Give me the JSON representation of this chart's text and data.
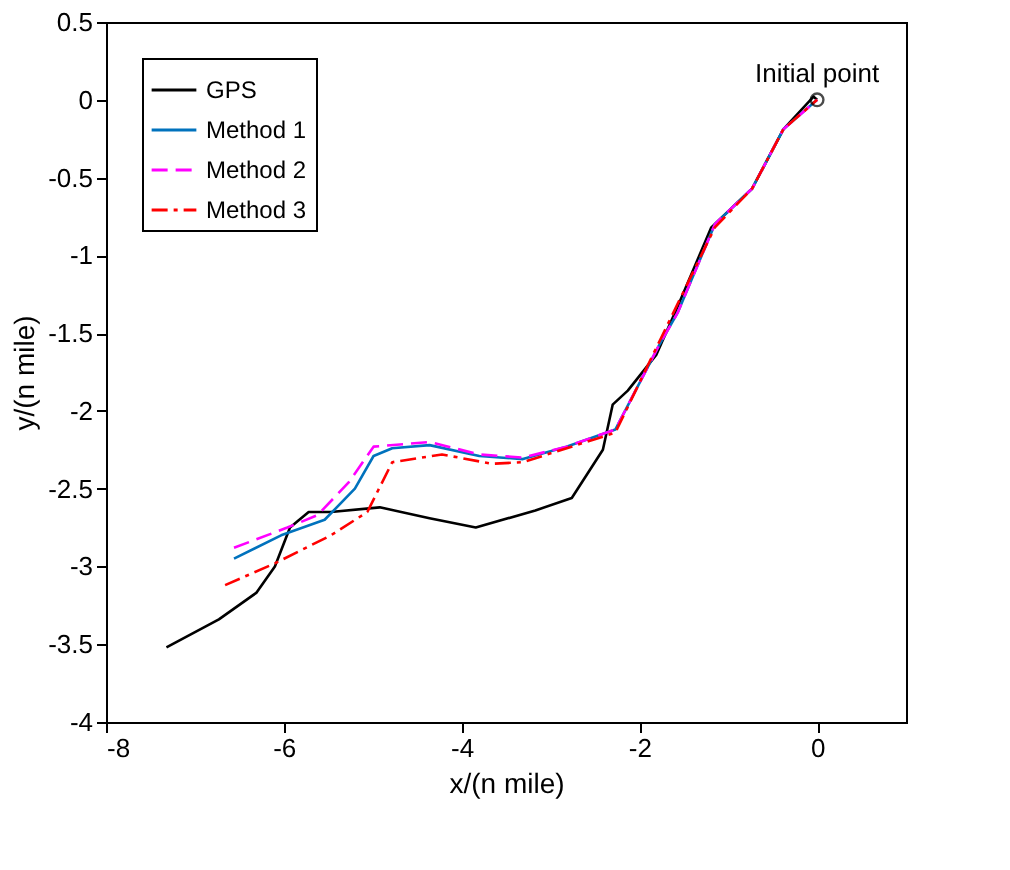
{
  "chart_data": {
    "type": "line",
    "xlabel": "x/(n mile)",
    "ylabel": "y/(n mile)",
    "xlim": [
      -8,
      1
    ],
    "xticks": [
      -8,
      -6,
      -4,
      -2,
      0
    ],
    "ylim": [
      -4,
      0.5
    ],
    "yticks": [
      -4,
      -3.5,
      -3,
      -2.5,
      -2,
      -1.5,
      -1,
      -0.5,
      0,
      0.5
    ],
    "grid": false,
    "legend": "top left",
    "marker": "none",
    "annotations": [
      {
        "text": "Initial point",
        "x": 0,
        "y": 0
      }
    ],
    "series": [
      {
        "name": "GPS",
        "color": "#000000",
        "line_style": "solid",
        "x": [
          -7.32,
          -6.73,
          -6.31,
          -6.1,
          -5.93,
          -5.72,
          -5.47,
          -4.92,
          -4.36,
          -3.84,
          -3.17,
          -2.76,
          -2.41,
          -2.3,
          -2.13,
          -1.81,
          -1.57,
          -1.19,
          -0.73,
          -0.38,
          -0.04,
          0
        ],
        "values": [
          -3.52,
          -3.34,
          -3.17,
          -3.0,
          -2.75,
          -2.65,
          -2.65,
          -2.62,
          -2.69,
          -2.75,
          -2.64,
          -2.56,
          -2.25,
          -1.96,
          -1.87,
          -1.64,
          -1.33,
          -0.82,
          -0.57,
          -0.19,
          0.02,
          0
        ]
      },
      {
        "name": "Method 1",
        "color": "#0072bd",
        "line_style": "solid",
        "x": [
          -6.56,
          -6.03,
          -5.54,
          -5.2,
          -4.99,
          -4.78,
          -4.36,
          -3.8,
          -3.31,
          -2.82,
          -2.27,
          -1.78,
          -1.57,
          -1.15,
          -0.73,
          -0.38,
          0
        ],
        "values": [
          -2.95,
          -2.8,
          -2.7,
          -2.5,
          -2.29,
          -2.24,
          -2.22,
          -2.29,
          -2.31,
          -2.23,
          -2.12,
          -1.58,
          -1.37,
          -0.8,
          -0.57,
          -0.19,
          0
        ]
      },
      {
        "name": "Method 2",
        "color": "#ff00ff",
        "line_style": "dashed",
        "x": [
          -6.56,
          -5.96,
          -5.62,
          -5.27,
          -4.99,
          -4.36,
          -3.8,
          -3.31,
          -2.82,
          -2.27,
          -1.78,
          -1.57,
          -1.15,
          -0.73,
          -0.38,
          0
        ],
        "values": [
          -2.88,
          -2.75,
          -2.67,
          -2.46,
          -2.23,
          -2.2,
          -2.28,
          -2.3,
          -2.23,
          -2.12,
          -1.58,
          -1.37,
          -0.8,
          -0.57,
          -0.19,
          0
        ]
      },
      {
        "name": "Method 3",
        "color": "#ff0000",
        "line_style": "dashdot",
        "x": [
          -6.66,
          -6.1,
          -5.47,
          -5.06,
          -4.78,
          -4.22,
          -3.66,
          -3.31,
          -2.27,
          -1.78,
          -1.15,
          -0.73,
          -0.38,
          0
        ],
        "values": [
          -3.12,
          -2.98,
          -2.8,
          -2.65,
          -2.33,
          -2.28,
          -2.34,
          -2.33,
          -2.14,
          -1.56,
          -0.82,
          -0.57,
          -0.19,
          0
        ]
      },
      {
        "type": "scatter",
        "color": "#000000",
        "marker": "circle",
        "x": [
          0
        ],
        "values": [
          0
        ]
      }
    ]
  }
}
